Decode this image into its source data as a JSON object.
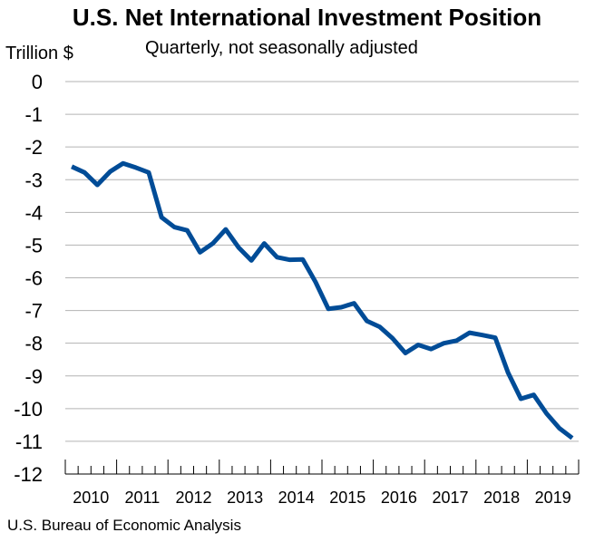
{
  "chart_data": {
    "type": "line",
    "title": "U.S. Net International Investment Position",
    "subtitle": "Quarterly, not seasonally adjusted",
    "ylabel": "Trillion $",
    "xlabel": "",
    "source": "U.S. Bureau of Economic Analysis",
    "ylim": [
      -12,
      0
    ],
    "yticks": [
      0,
      -1,
      -2,
      -3,
      -4,
      -5,
      -6,
      -7,
      -8,
      -9,
      -10,
      -11,
      -12
    ],
    "grid": true,
    "legend": "none",
    "x_categories": [
      "2010",
      "2011",
      "2012",
      "2013",
      "2014",
      "2015",
      "2016",
      "2017",
      "2018",
      "2019"
    ],
    "quarters": [
      "2010 Q1",
      "2010 Q2",
      "2010 Q3",
      "2010 Q4",
      "2011 Q1",
      "2011 Q2",
      "2011 Q3",
      "2011 Q4",
      "2012 Q1",
      "2012 Q2",
      "2012 Q3",
      "2012 Q4",
      "2013 Q1",
      "2013 Q2",
      "2013 Q3",
      "2013 Q4",
      "2014 Q1",
      "2014 Q2",
      "2014 Q3",
      "2014 Q4",
      "2015 Q1",
      "2015 Q2",
      "2015 Q3",
      "2015 Q4",
      "2016 Q1",
      "2016 Q2",
      "2016 Q3",
      "2016 Q4",
      "2017 Q1",
      "2017 Q2",
      "2017 Q3",
      "2017 Q4",
      "2018 Q1",
      "2018 Q2",
      "2018 Q3",
      "2018 Q4",
      "2019 Q1",
      "2019 Q2",
      "2019 Q3",
      "2019 Q4"
    ],
    "series": [
      {
        "color": "#004c97",
        "values": [
          -2.6,
          -2.78,
          -3.16,
          -2.75,
          -2.5,
          -2.63,
          -2.78,
          -4.15,
          -4.45,
          -4.55,
          -5.22,
          -4.95,
          -4.52,
          -5.07,
          -5.47,
          -4.95,
          -5.37,
          -5.45,
          -5.44,
          -6.13,
          -6.95,
          -6.9,
          -6.78,
          -7.32,
          -7.5,
          -7.85,
          -8.3,
          -8.05,
          -8.18,
          -8.0,
          -7.92,
          -7.68,
          -7.75,
          -7.83,
          -8.9,
          -9.7,
          -9.58,
          -10.15,
          -10.6,
          -10.9
        ]
      }
    ]
  }
}
